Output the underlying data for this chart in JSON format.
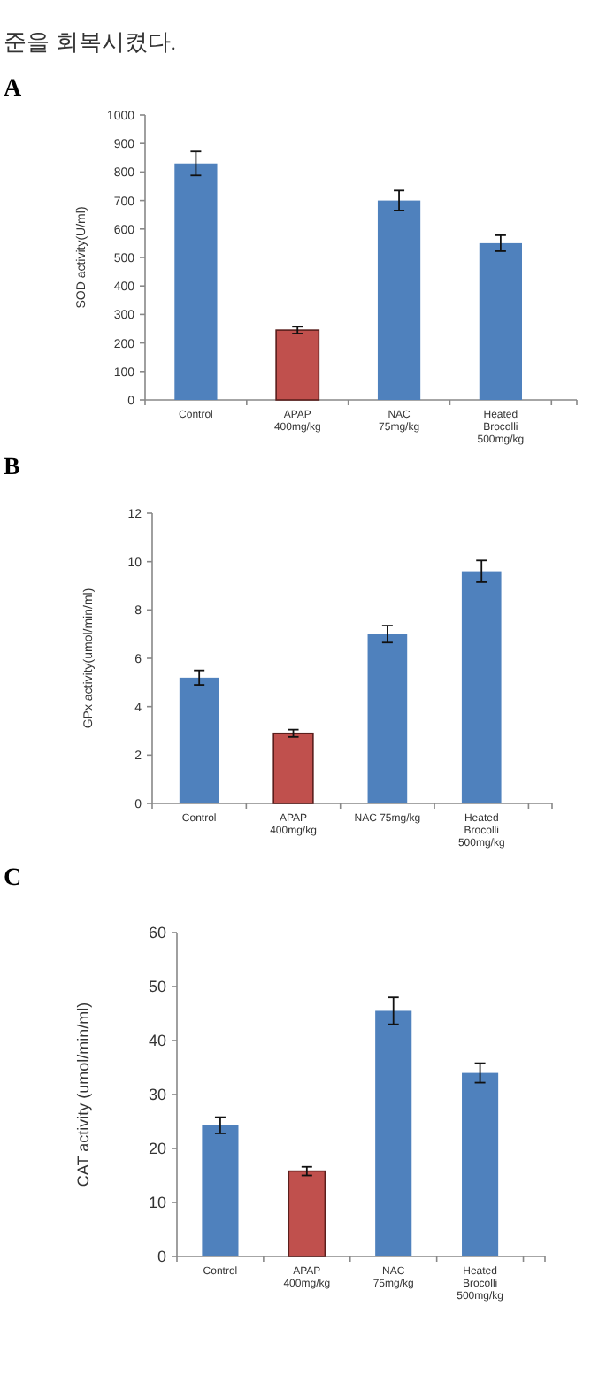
{
  "chart_data": [
    {
      "type": "bar",
      "title": "A",
      "annotations": [
        "준을 회복시켰다."
      ],
      "ylabel": "SOD activity(U/ml)",
      "categories": [
        "Control",
        "APAP\n400mg/kg",
        "NAC\n75mg/kg",
        "Heated\nBrocolli\n500mg/kg"
      ],
      "colors": [
        "#4f81bd",
        "#c0504d",
        "#4f81bd",
        "#4f81bd"
      ],
      "values": [
        830,
        245,
        700,
        550
      ],
      "errors": [
        42,
        12,
        35,
        28
      ],
      "ylim": [
        0,
        1000
      ],
      "yticks": [
        0,
        100,
        200,
        300,
        400,
        500,
        600,
        700,
        800,
        900,
        1000
      ]
    },
    {
      "type": "bar",
      "title": "B",
      "ylabel": "GPx activity(umol/min/ml)",
      "categories": [
        "Control",
        "APAP\n400mg/kg",
        "NAC 75mg/kg",
        "Heated\nBrocolli\n500mg/kg"
      ],
      "colors": [
        "#4f81bd",
        "#c0504d",
        "#4f81bd",
        "#4f81bd"
      ],
      "values": [
        5.2,
        2.9,
        7.0,
        9.6
      ],
      "errors": [
        0.3,
        0.15,
        0.35,
        0.45
      ],
      "ylim": [
        0,
        12
      ],
      "yticks": [
        0,
        2,
        4,
        6,
        8,
        10,
        12
      ]
    },
    {
      "type": "bar",
      "title": "C",
      "ylabel": "CAT activity (umol/min/ml)",
      "categories": [
        "Control",
        "APAP\n400mg/kg",
        "NAC\n75mg/kg",
        "Heated\nBrocolli\n500mg/kg"
      ],
      "colors": [
        "#4f81bd",
        "#c0504d",
        "#4f81bd",
        "#4f81bd"
      ],
      "values": [
        24.3,
        15.8,
        45.5,
        34
      ],
      "errors": [
        1.5,
        0.8,
        2.5,
        1.8
      ],
      "ylim": [
        0,
        60
      ],
      "yticks": [
        0,
        10,
        20,
        30,
        40,
        50,
        60
      ]
    }
  ]
}
